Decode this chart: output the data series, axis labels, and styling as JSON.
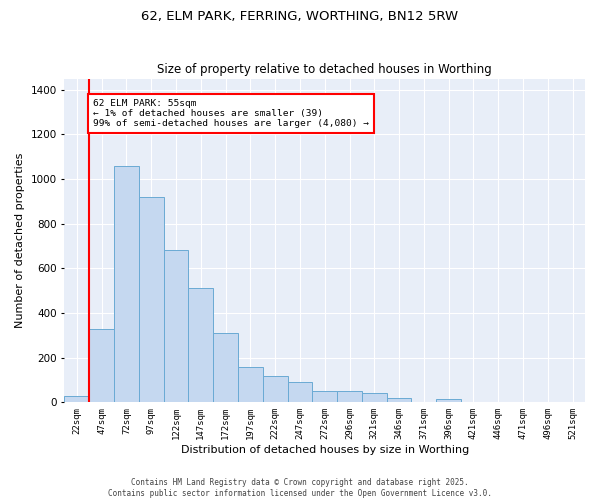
{
  "title": "62, ELM PARK, FERRING, WORTHING, BN12 5RW",
  "subtitle": "Size of property relative to detached houses in Worthing",
  "xlabel": "Distribution of detached houses by size in Worthing",
  "ylabel": "Number of detached properties",
  "bar_color": "#c5d8f0",
  "bar_edge_color": "#6aaad4",
  "background_color": "#e8eef8",
  "grid_color": "#ffffff",
  "categories": [
    "22sqm",
    "47sqm",
    "72sqm",
    "97sqm",
    "122sqm",
    "147sqm",
    "172sqm",
    "197sqm",
    "222sqm",
    "247sqm",
    "272sqm",
    "296sqm",
    "321sqm",
    "346sqm",
    "371sqm",
    "396sqm",
    "421sqm",
    "446sqm",
    "471sqm",
    "496sqm",
    "521sqm"
  ],
  "values": [
    30,
    330,
    1060,
    920,
    680,
    510,
    310,
    160,
    120,
    90,
    50,
    50,
    40,
    20,
    0,
    15,
    0,
    0,
    0,
    0,
    0
  ],
  "ylim": [
    0,
    1450
  ],
  "yticks": [
    0,
    200,
    400,
    600,
    800,
    1000,
    1200,
    1400
  ],
  "annotation_line1": "62 ELM PARK: 55sqm",
  "annotation_line2": "← 1% of detached houses are smaller (39)",
  "annotation_line3": "99% of semi-detached houses are larger (4,080) →",
  "red_line_bar_index": 1,
  "footer_line1": "Contains HM Land Registry data © Crown copyright and database right 2025.",
  "footer_line2": "Contains public sector information licensed under the Open Government Licence v3.0."
}
